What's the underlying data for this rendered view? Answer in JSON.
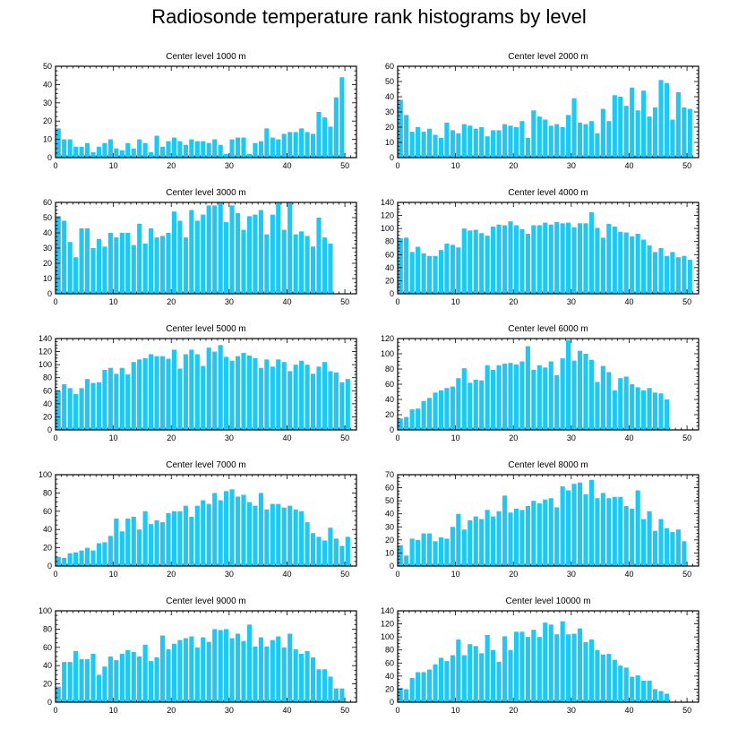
{
  "figure": {
    "title": "Radiosonde temperature rank histograms by level"
  },
  "colors": {
    "bar": "#1ec8f5",
    "axis": "#000000",
    "background": "#ffffff"
  },
  "chart_data": [
    {
      "type": "bar",
      "title": "Center level 1000 m",
      "xlim": [
        0,
        52
      ],
      "ylim": [
        0,
        50
      ],
      "xticks": [
        0,
        10,
        20,
        30,
        40,
        50
      ],
      "yticks": [
        0,
        10,
        20,
        30,
        40,
        50
      ],
      "values": [
        16,
        10,
        10,
        6,
        6,
        8,
        3,
        6,
        8,
        10,
        5,
        4,
        8,
        5,
        10,
        8,
        3,
        12,
        6,
        9,
        11,
        9,
        7,
        10,
        9,
        9,
        8,
        10,
        7,
        2,
        10,
        11,
        11,
        2,
        8,
        9,
        16,
        11,
        10,
        13,
        14,
        14,
        16,
        14,
        13,
        25,
        22,
        17,
        33,
        44,
        0
      ]
    },
    {
      "type": "bar",
      "title": "Center level 2000 m",
      "xlim": [
        0,
        52
      ],
      "ylim": [
        0,
        60
      ],
      "xticks": [
        0,
        10,
        20,
        30,
        40,
        50
      ],
      "yticks": [
        0,
        10,
        20,
        30,
        40,
        50,
        60
      ],
      "values": [
        38,
        28,
        17,
        20,
        17,
        19,
        15,
        13,
        23,
        18,
        16,
        22,
        21,
        19,
        20,
        14,
        18,
        18,
        22,
        21,
        20,
        24,
        13,
        31,
        27,
        25,
        21,
        22,
        20,
        28,
        39,
        23,
        22,
        24,
        16,
        32,
        24,
        41,
        40,
        34,
        46,
        31,
        44,
        27,
        33,
        51,
        49,
        25,
        43,
        33,
        32
      ]
    },
    {
      "type": "bar",
      "title": "Center level 3000 m",
      "xlim": [
        0,
        52
      ],
      "ylim": [
        0,
        60
      ],
      "xticks": [
        0,
        10,
        20,
        30,
        40,
        50
      ],
      "yticks": [
        0,
        10,
        20,
        30,
        40,
        50,
        60
      ],
      "values": [
        51,
        48,
        34,
        24,
        43,
        43,
        30,
        36,
        31,
        40,
        37,
        40,
        40,
        32,
        46,
        33,
        43,
        37,
        38,
        40,
        54,
        48,
        37,
        55,
        48,
        52,
        58,
        58,
        60,
        47,
        58,
        53,
        42,
        51,
        52,
        55,
        39,
        52,
        60,
        42,
        60,
        39,
        41,
        38,
        31,
        50,
        37,
        33,
        0,
        0,
        0
      ]
    },
    {
      "type": "bar",
      "title": "Center level 4000 m",
      "xlim": [
        0,
        52
      ],
      "ylim": [
        0,
        140
      ],
      "xticks": [
        0,
        10,
        20,
        30,
        40,
        50
      ],
      "yticks": [
        0,
        20,
        40,
        60,
        80,
        100,
        120,
        140
      ],
      "values": [
        85,
        86,
        64,
        72,
        62,
        58,
        58,
        67,
        77,
        75,
        71,
        100,
        97,
        98,
        93,
        89,
        103,
        106,
        105,
        111,
        105,
        99,
        92,
        105,
        105,
        109,
        106,
        110,
        108,
        109,
        102,
        108,
        108,
        125,
        101,
        86,
        107,
        103,
        95,
        94,
        88,
        92,
        83,
        74,
        64,
        70,
        58,
        64,
        56,
        58,
        52
      ]
    },
    {
      "type": "bar",
      "title": "Center level 5000 m",
      "xlim": [
        0,
        52
      ],
      "ylim": [
        0,
        140
      ],
      "xticks": [
        0,
        10,
        20,
        30,
        40,
        50
      ],
      "yticks": [
        0,
        20,
        40,
        60,
        80,
        100,
        120,
        140
      ],
      "values": [
        60,
        70,
        64,
        55,
        64,
        78,
        72,
        73,
        92,
        95,
        86,
        95,
        85,
        104,
        108,
        110,
        116,
        113,
        113,
        109,
        123,
        94,
        116,
        123,
        116,
        98,
        126,
        120,
        130,
        112,
        106,
        113,
        118,
        114,
        110,
        95,
        108,
        97,
        108,
        104,
        90,
        100,
        106,
        100,
        86,
        97,
        104,
        90,
        88,
        73,
        78
      ]
    },
    {
      "type": "bar",
      "title": "Center level 6000 m",
      "xlim": [
        0,
        52
      ],
      "ylim": [
        0,
        120
      ],
      "xticks": [
        0,
        10,
        20,
        30,
        40,
        50
      ],
      "yticks": [
        0,
        20,
        40,
        60,
        80,
        100,
        120
      ],
      "values": [
        15,
        17,
        27,
        28,
        38,
        42,
        49,
        52,
        55,
        57,
        68,
        81,
        62,
        66,
        65,
        85,
        79,
        85,
        87,
        88,
        86,
        90,
        110,
        79,
        85,
        82,
        90,
        72,
        94,
        118,
        91,
        104,
        100,
        92,
        63,
        84,
        76,
        52,
        68,
        70,
        60,
        56,
        52,
        55,
        49,
        48,
        40,
        0,
        0,
        0,
        0
      ]
    },
    {
      "type": "bar",
      "title": "Center level 7000 m",
      "xlim": [
        0,
        52
      ],
      "ylim": [
        0,
        100
      ],
      "xticks": [
        0,
        10,
        20,
        30,
        40,
        50
      ],
      "yticks": [
        0,
        20,
        40,
        60,
        80,
        100
      ],
      "values": [
        10,
        9,
        14,
        15,
        17,
        20,
        17,
        25,
        26,
        33,
        52,
        38,
        52,
        54,
        40,
        60,
        46,
        50,
        48,
        58,
        60,
        60,
        66,
        54,
        66,
        72,
        68,
        80,
        72,
        82,
        84,
        76,
        78,
        70,
        66,
        80,
        62,
        68,
        68,
        64,
        66,
        62,
        60,
        48,
        36,
        32,
        28,
        42,
        30,
        22,
        32
      ]
    },
    {
      "type": "bar",
      "title": "Center level 8000 m",
      "xlim": [
        0,
        52
      ],
      "ylim": [
        0,
        70
      ],
      "xticks": [
        0,
        10,
        20,
        30,
        40,
        50
      ],
      "yticks": [
        0,
        10,
        20,
        30,
        40,
        50,
        60,
        70
      ],
      "values": [
        16,
        8,
        21,
        20,
        25,
        25,
        19,
        22,
        21,
        30,
        40,
        28,
        35,
        38,
        36,
        43,
        38,
        42,
        54,
        41,
        44,
        43,
        46,
        50,
        48,
        51,
        52,
        45,
        61,
        58,
        63,
        64,
        55,
        66,
        52,
        56,
        52,
        53,
        53,
        46,
        44,
        58,
        36,
        42,
        27,
        36,
        29,
        26,
        28,
        19,
        0
      ]
    },
    {
      "type": "bar",
      "title": "Center level 9000 m",
      "xlim": [
        0,
        52
      ],
      "ylim": [
        0,
        100
      ],
      "xticks": [
        0,
        10,
        20,
        30,
        40,
        50
      ],
      "yticks": [
        0,
        20,
        40,
        60,
        80,
        100
      ],
      "values": [
        17,
        44,
        44,
        56,
        47,
        47,
        53,
        30,
        39,
        50,
        46,
        53,
        57,
        55,
        50,
        63,
        45,
        49,
        73,
        58,
        64,
        68,
        70,
        72,
        60,
        71,
        66,
        80,
        79,
        80,
        70,
        75,
        67,
        85,
        61,
        71,
        61,
        68,
        72,
        60,
        75,
        58,
        53,
        56,
        49,
        36,
        36,
        28,
        15,
        15,
        0
      ]
    },
    {
      "type": "bar",
      "title": "Center level 10000 m",
      "xlim": [
        0,
        52
      ],
      "ylim": [
        0,
        140
      ],
      "xticks": [
        0,
        10,
        20,
        30,
        40,
        50
      ],
      "yticks": [
        0,
        20,
        40,
        60,
        80,
        100,
        120,
        140
      ],
      "values": [
        22,
        20,
        37,
        46,
        46,
        50,
        58,
        68,
        63,
        72,
        96,
        72,
        89,
        86,
        75,
        103,
        80,
        62,
        101,
        80,
        108,
        108,
        100,
        111,
        100,
        122,
        119,
        104,
        124,
        104,
        105,
        113,
        92,
        96,
        80,
        73,
        74,
        65,
        56,
        53,
        39,
        41,
        33,
        33,
        20,
        17,
        13,
        0,
        0,
        0,
        0
      ]
    }
  ]
}
